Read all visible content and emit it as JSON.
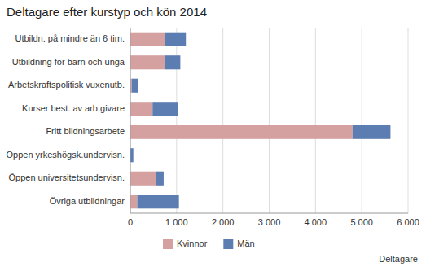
{
  "chart_data": {
    "type": "bar",
    "orientation": "horizontal",
    "stacked": true,
    "title": "Deltagare efter kurstyp och kön 2014",
    "x_label": "Deltagare",
    "categories": [
      "Utbildn. på mindre än 6 tim.",
      "Utbildning för barn och unga",
      "Arbetskraftspolitisk vuxenutb.",
      "Kurser best. av arb.givare",
      "Fritt bildningsarbete",
      "Öppen yrkeshögsk.undervisn.",
      "Öppen universitetsundervisn.",
      "Övriga utbildningar"
    ],
    "series": [
      {
        "name": "Kvinnor",
        "color": "#d4a0a0",
        "values": [
          750,
          750,
          30,
          480,
          4800,
          0,
          550,
          150
        ]
      },
      {
        "name": "Män",
        "color": "#5b7db1",
        "values": [
          450,
          330,
          130,
          550,
          820,
          65,
          170,
          900
        ]
      }
    ],
    "xlim": [
      0,
      6000
    ],
    "xticks": [
      0,
      {
        "value": 1000,
        "label": "1 000"
      },
      {
        "value": 2000,
        "label": "2 000"
      },
      {
        "value": 3000,
        "label": "3 000"
      },
      {
        "value": 4000,
        "label": "4 000"
      },
      {
        "value": 5000,
        "label": "5 000"
      },
      {
        "value": 6000,
        "label": "6 000"
      }
    ],
    "grid": true,
    "legend": "bottom"
  }
}
